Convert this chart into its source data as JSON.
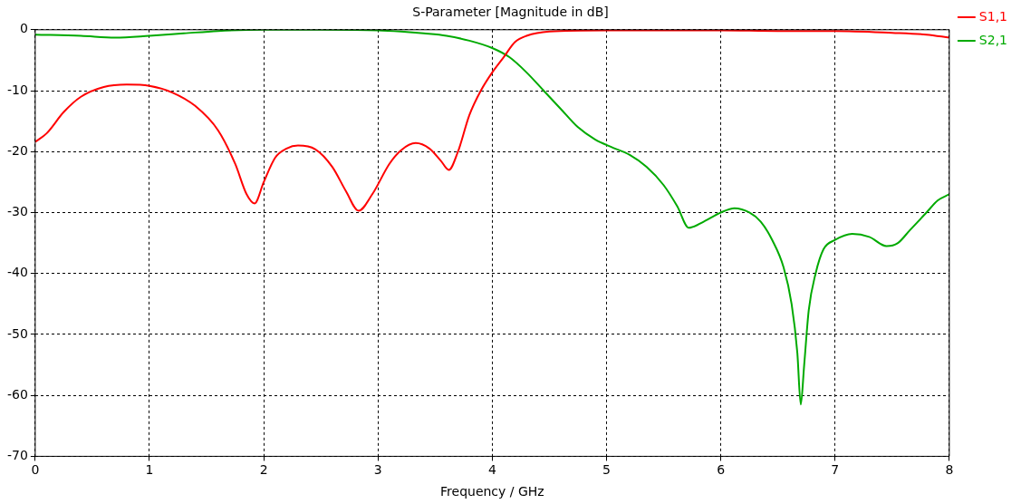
{
  "chart_data": {
    "type": "line",
    "title": "S-Parameter [Magnitude in dB]",
    "xlabel": "Frequency / GHz",
    "xlim": [
      0,
      8
    ],
    "xticks": [
      0,
      1,
      2,
      3,
      4,
      5,
      6,
      7,
      8
    ],
    "ylim": [
      -70,
      0
    ],
    "yticks": [
      -70,
      -60,
      -50,
      -40,
      -30,
      -20,
      -10,
      0
    ],
    "grid": true,
    "legend": "right",
    "marker": "none",
    "line_style": "solid",
    "series": [
      {
        "name": "S1,1",
        "color": "#ff0000",
        "x": [
          0,
          0.1,
          0.25,
          0.4,
          0.6,
          0.8,
          1.0,
          1.2,
          1.4,
          1.6,
          1.75,
          1.85,
          1.92,
          2.0,
          2.1,
          2.2,
          2.3,
          2.45,
          2.6,
          2.72,
          2.83,
          2.95,
          3.1,
          3.2,
          3.33,
          3.45,
          3.55,
          3.62,
          3.7,
          3.8,
          3.9,
          4.0,
          4.1,
          4.2,
          4.3,
          4.5,
          5,
          5.5,
          6,
          6.5,
          7,
          7.5,
          7.8,
          8
        ],
        "values": [
          -18.4,
          -17,
          -13.5,
          -11,
          -9.4,
          -9,
          -9.2,
          -10.3,
          -12.5,
          -16.5,
          -22,
          -27,
          -28.5,
          -25,
          -21,
          -19.5,
          -19,
          -19.6,
          -22.5,
          -26.5,
          -29.7,
          -27,
          -22,
          -19.8,
          -18.6,
          -19.5,
          -21.5,
          -23,
          -20,
          -14,
          -10,
          -7,
          -4.5,
          -2,
          -1,
          -0.3,
          -0.1,
          -0.1,
          -0.1,
          -0.2,
          -0.2,
          -0.5,
          -0.8,
          -1.3
        ]
      },
      {
        "name": "S2,1",
        "color": "#00aa00",
        "x": [
          0,
          0.4,
          0.7,
          1.0,
          1.3,
          1.6,
          2.0,
          2.5,
          3.0,
          3.2,
          3.4,
          3.6,
          3.8,
          4.0,
          4.15,
          4.3,
          4.45,
          4.6,
          4.75,
          4.9,
          5.05,
          5.2,
          5.35,
          5.5,
          5.62,
          5.72,
          5.85,
          6.0,
          6.12,
          6.25,
          6.35,
          6.45,
          6.55,
          6.62,
          6.67,
          6.7,
          6.73,
          6.77,
          6.83,
          6.9,
          7.0,
          7.15,
          7.3,
          7.45,
          7.55,
          7.65,
          7.8,
          7.9,
          8.0
        ],
        "values": [
          -0.8,
          -1.0,
          -1.3,
          -1.0,
          -0.6,
          -0.2,
          0,
          0,
          -0.1,
          -0.3,
          -0.6,
          -1,
          -1.8,
          -3,
          -4.5,
          -7,
          -10,
          -13,
          -16,
          -18,
          -19.3,
          -20.5,
          -22.5,
          -25.5,
          -29,
          -32.5,
          -31.5,
          -30,
          -29.3,
          -30,
          -31.5,
          -34.5,
          -39,
          -45,
          -53,
          -61.5,
          -55,
          -46,
          -40,
          -36,
          -34.5,
          -33.5,
          -34,
          -35.5,
          -35,
          -33,
          -30,
          -28,
          -27
        ]
      }
    ]
  }
}
